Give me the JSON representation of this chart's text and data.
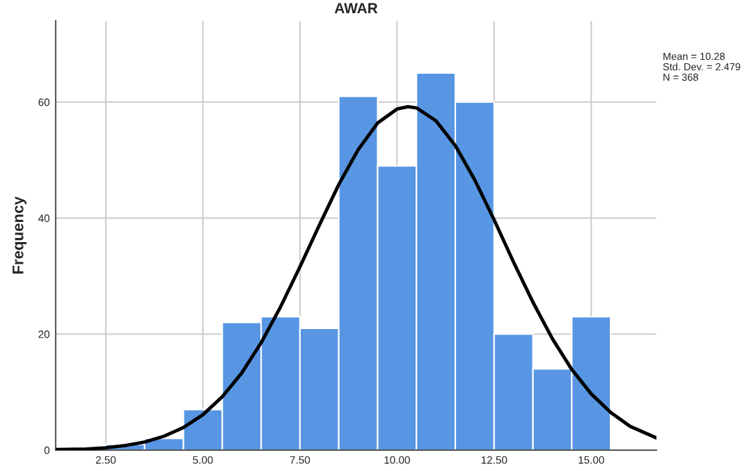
{
  "chart_data": {
    "type": "histogram",
    "title": "AWAR",
    "ylabel": "Frequency",
    "bins": [
      2.5,
      3.5,
      4.5,
      5.5,
      6.5,
      7.5,
      8.5,
      9.5,
      10.5,
      11.5,
      12.5,
      13.5,
      14.5,
      15.5
    ],
    "values": [
      1,
      2,
      7,
      22,
      23,
      21,
      61,
      49,
      65,
      60,
      20,
      14,
      23
    ],
    "color": "#5896e4",
    "series": [
      {
        "type": "line",
        "color": "#000000",
        "x": [
          1.21,
          2,
          2.5,
          3,
          3.5,
          4,
          4.5,
          5,
          5.5,
          6,
          6.5,
          7,
          7.5,
          8,
          8.5,
          9,
          9.5,
          10,
          10.28,
          10.5,
          11,
          11.5,
          12,
          12.5,
          13,
          13.5,
          14,
          14.5,
          15,
          15.5,
          16,
          16.68
        ],
        "values": [
          0.1,
          0.2,
          0.4,
          0.8,
          1.4,
          2.4,
          3.9,
          6.1,
          9.2,
          13.3,
          18.5,
          24.7,
          31.6,
          38.8,
          45.8,
          51.8,
          56.4,
          58.8,
          59.2,
          59.0,
          56.8,
          52.5,
          46.6,
          39.7,
          32.4,
          25.5,
          19.2,
          13.9,
          9.7,
          6.5,
          4.1,
          2.1
        ]
      }
    ],
    "xlim": [
      1.21,
      16.68
    ],
    "ylim": [
      0,
      74
    ],
    "xticks": [
      {
        "value": 2.5,
        "label": "2.50"
      },
      {
        "value": 5,
        "label": "5.00"
      },
      {
        "value": 7.5,
        "label": "7.50"
      },
      {
        "value": 10,
        "label": "10.00"
      },
      {
        "value": 12.5,
        "label": "12.50"
      },
      {
        "value": 15,
        "label": "15.00"
      }
    ],
    "yticks": [
      0,
      20,
      40,
      60
    ],
    "grid": true,
    "annotations": [
      "Mean = 10.28",
      "Std. Dev. = 2.479",
      "N = 368"
    ]
  }
}
